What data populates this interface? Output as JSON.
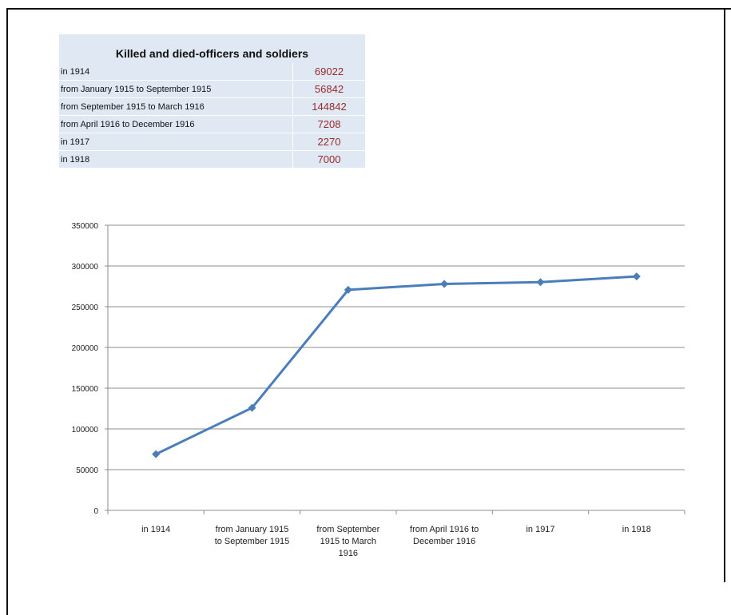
{
  "table": {
    "title": "Killed and died-officers and soldiers",
    "rows": [
      {
        "label": "in 1914",
        "value": "69022"
      },
      {
        "label": "from January 1915 to September 1915",
        "value": "56842"
      },
      {
        "label": "from September 1915 to March 1916",
        "value": "144842"
      },
      {
        "label": "from April 1916 to December 1916",
        "value": "7208"
      },
      {
        "label": "in 1917",
        "value": "2270"
      },
      {
        "label": "in 1918",
        "value": "7000"
      }
    ]
  },
  "chart_data": {
    "type": "line",
    "categories": [
      [
        "in 1914"
      ],
      [
        "from January 1915",
        "to September 1915"
      ],
      [
        "from September",
        "1915 to March",
        "1916"
      ],
      [
        "from April 1916 to",
        "December 1916"
      ],
      [
        "in 1917"
      ],
      [
        "in 1918"
      ]
    ],
    "values": [
      69022,
      125864,
      270706,
      277914,
      280184,
      287184
    ],
    "ylim": [
      0,
      350000
    ],
    "yticks": [
      0,
      50000,
      100000,
      150000,
      200000,
      250000,
      300000,
      350000
    ],
    "grid": true,
    "legend": "none",
    "line_color": "#4a7ebb",
    "marker": "diamond"
  }
}
